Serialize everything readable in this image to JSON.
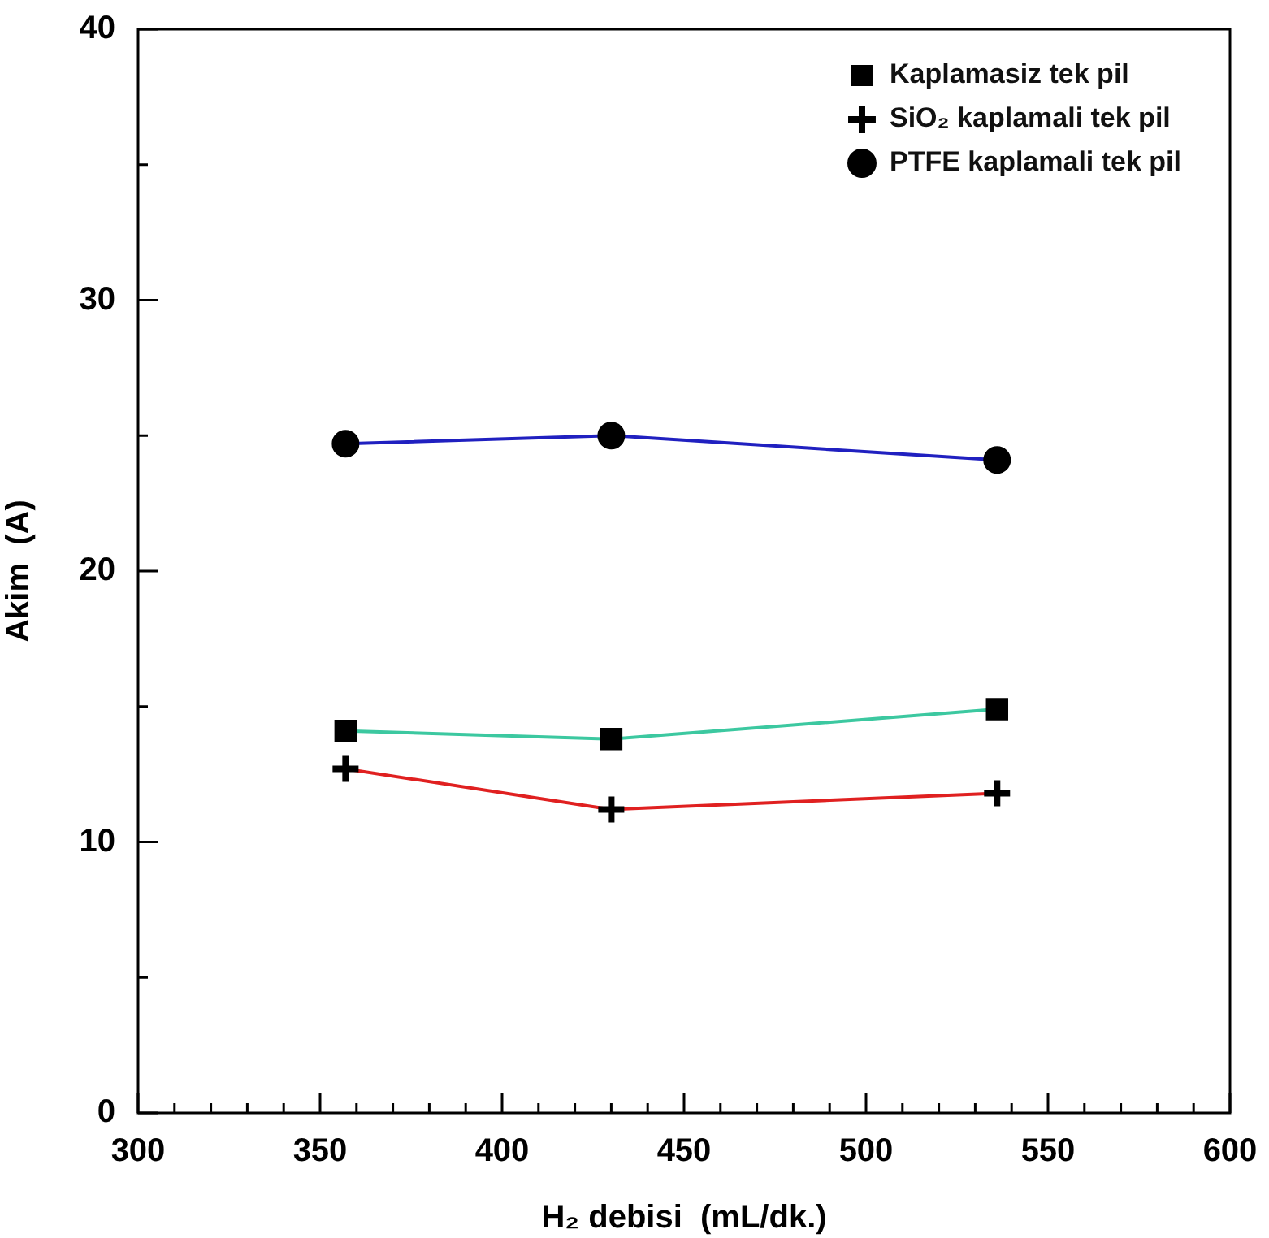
{
  "chart_data": {
    "type": "line",
    "xlabel": "H₂ debisi  (mL/dk.)",
    "ylabel": "Akim  (A)",
    "xlim": [
      300,
      600
    ],
    "xticks": [
      300,
      {
        "value": 310,
        "label": null
      },
      {
        "value": 320,
        "label": null
      },
      {
        "value": 330,
        "label": null
      },
      {
        "value": 340,
        "label": null
      },
      350,
      {
        "value": 360,
        "label": null
      },
      {
        "value": 370,
        "label": null
      },
      {
        "value": 380,
        "label": null
      },
      {
        "value": 390,
        "label": null
      },
      400,
      {
        "value": 410,
        "label": null
      },
      {
        "value": 420,
        "label": null
      },
      {
        "value": 430,
        "label": null
      },
      {
        "value": 440,
        "label": null
      },
      450,
      {
        "value": 460,
        "label": null
      },
      {
        "value": 470,
        "label": null
      },
      {
        "value": 480,
        "label": null
      },
      {
        "value": 490,
        "label": null
      },
      500,
      {
        "value": 510,
        "label": null
      },
      {
        "value": 520,
        "label": null
      },
      {
        "value": 530,
        "label": null
      },
      {
        "value": 540,
        "label": null
      },
      550,
      {
        "value": 560,
        "label": null
      },
      {
        "value": 570,
        "label": null
      },
      {
        "value": 580,
        "label": null
      },
      {
        "value": 590,
        "label": null
      },
      600
    ],
    "ylim": [
      0,
      40
    ],
    "yticks": [
      0,
      {
        "value": 5,
        "label": null
      },
      10,
      {
        "value": 15,
        "label": null
      },
      20,
      {
        "value": 25,
        "label": null
      },
      30,
      {
        "value": 35,
        "label": null
      },
      40
    ],
    "x": [
      357,
      430,
      536
    ],
    "grid": false,
    "legend": "top right",
    "line_style": "solid",
    "series": [
      {
        "name": "Kaplamasiz tek pil",
        "color": "#3cc8a0",
        "marker": "square",
        "values": [
          14.1,
          13.8,
          14.9
        ]
      },
      {
        "name": "SiO₂ kaplamali tek pil",
        "color": "#e02020",
        "marker": "cross",
        "values": [
          12.7,
          11.2,
          11.8
        ]
      },
      {
        "name": "PTFE kaplamali tek pil",
        "color": "#2020c0",
        "marker": "circle",
        "values": [
          24.7,
          25.0,
          24.1
        ]
      }
    ]
  }
}
